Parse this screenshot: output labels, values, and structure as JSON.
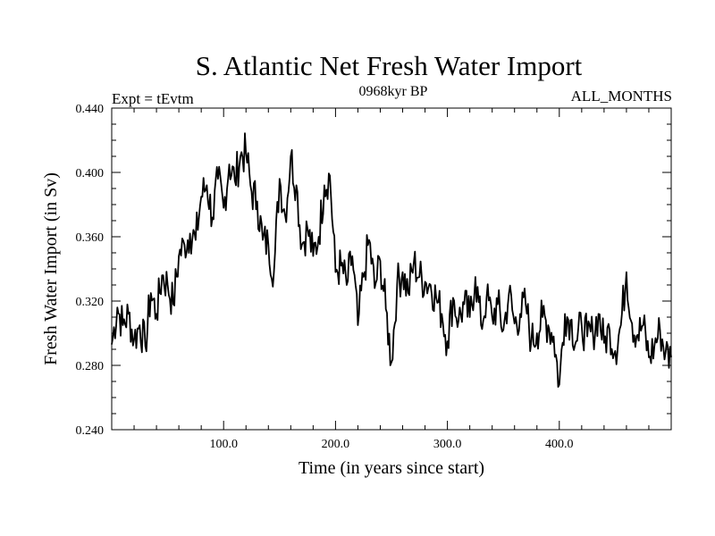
{
  "chart_data": {
    "type": "line",
    "title": "S. Atlantic Net Fresh Water Import",
    "subtitle_left": "Expt = tEvtm",
    "subtitle_center": "0968kyr BP",
    "subtitle_right": "ALL_MONTHS",
    "xlabel": "Time (in years since start)",
    "ylabel": "Fresh Water Import (in Sv)",
    "xlim": [
      0,
      500
    ],
    "ylim": [
      0.24,
      0.44
    ],
    "xticks": [
      100,
      200,
      300,
      400
    ],
    "xtick_labels": [
      "100.0",
      "200.0",
      "300.0",
      "400.0"
    ],
    "yticks": [
      0.24,
      0.28,
      0.32,
      0.36,
      0.4,
      0.44
    ],
    "ytick_labels": [
      "0.240",
      "0.280",
      "0.320",
      "0.360",
      "0.400",
      "0.440"
    ],
    "grid": false,
    "series": [
      {
        "name": "Fresh Water Import",
        "x": [
          0,
          5,
          10,
          15,
          20,
          25,
          30,
          35,
          40,
          45,
          50,
          55,
          60,
          65,
          70,
          75,
          80,
          85,
          90,
          95,
          100,
          105,
          110,
          115,
          120,
          125,
          130,
          135,
          140,
          145,
          150,
          155,
          160,
          165,
          170,
          175,
          180,
          185,
          190,
          195,
          200,
          205,
          210,
          215,
          220,
          225,
          230,
          235,
          240,
          245,
          250,
          255,
          260,
          265,
          270,
          275,
          280,
          285,
          290,
          295,
          300,
          305,
          310,
          315,
          320,
          325,
          330,
          335,
          340,
          345,
          350,
          355,
          360,
          365,
          370,
          375,
          380,
          385,
          390,
          395,
          400,
          405,
          410,
          415,
          420,
          425,
          430,
          435,
          440,
          445,
          450,
          455,
          460,
          465,
          470,
          475,
          480,
          485,
          490,
          495,
          500
        ],
        "values": [
          0.293,
          0.316,
          0.305,
          0.312,
          0.296,
          0.305,
          0.292,
          0.325,
          0.312,
          0.336,
          0.33,
          0.318,
          0.348,
          0.355,
          0.362,
          0.358,
          0.385,
          0.392,
          0.372,
          0.396,
          0.378,
          0.405,
          0.395,
          0.41,
          0.412,
          0.388,
          0.382,
          0.358,
          0.355,
          0.338,
          0.396,
          0.373,
          0.41,
          0.392,
          0.355,
          0.365,
          0.348,
          0.36,
          0.392,
          0.398,
          0.338,
          0.342,
          0.33,
          0.348,
          0.305,
          0.335,
          0.358,
          0.328,
          0.345,
          0.315,
          0.282,
          0.33,
          0.338,
          0.325,
          0.344,
          0.335,
          0.332,
          0.33,
          0.322,
          0.312,
          0.295,
          0.322,
          0.308,
          0.318,
          0.31,
          0.335,
          0.305,
          0.322,
          0.31,
          0.318,
          0.302,
          0.325,
          0.306,
          0.312,
          0.318,
          0.295,
          0.3,
          0.31,
          0.305,
          0.298,
          0.268,
          0.312,
          0.308,
          0.295,
          0.305,
          0.298,
          0.3,
          0.312,
          0.294,
          0.302,
          0.289,
          0.305,
          0.338,
          0.306,
          0.299,
          0.305,
          0.285,
          0.292,
          0.302,
          0.288,
          0.285
        ]
      }
    ]
  }
}
